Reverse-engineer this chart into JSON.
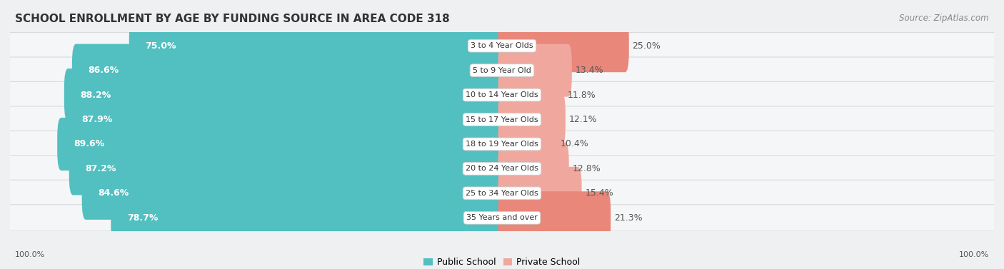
{
  "title": "SCHOOL ENROLLMENT BY AGE BY FUNDING SOURCE IN AREA CODE 318",
  "source": "Source: ZipAtlas.com",
  "categories": [
    "3 to 4 Year Olds",
    "5 to 9 Year Old",
    "10 to 14 Year Olds",
    "15 to 17 Year Olds",
    "18 to 19 Year Olds",
    "20 to 24 Year Olds",
    "25 to 34 Year Olds",
    "35 Years and over"
  ],
  "public_values": [
    75.0,
    86.6,
    88.2,
    87.9,
    89.6,
    87.2,
    84.6,
    78.7
  ],
  "private_values": [
    25.0,
    13.4,
    11.8,
    12.1,
    10.4,
    12.8,
    15.4,
    21.3
  ],
  "public_color": "#52bfc1",
  "private_color": "#e8877a",
  "private_color_light": "#f0a89e",
  "public_label": "Public School",
  "private_label": "Private School",
  "bg_color": "#eef0f2",
  "row_bg_color": "#f5f6f8",
  "row_border_color": "#d8dadd",
  "label_bg_color": "#ffffff",
  "title_fontsize": 11,
  "source_fontsize": 8.5,
  "bar_label_fontsize": 9,
  "category_fontsize": 8,
  "axis_label_fontsize": 8,
  "legend_fontsize": 9,
  "left_axis_label": "100.0%",
  "right_axis_label": "100.0%"
}
